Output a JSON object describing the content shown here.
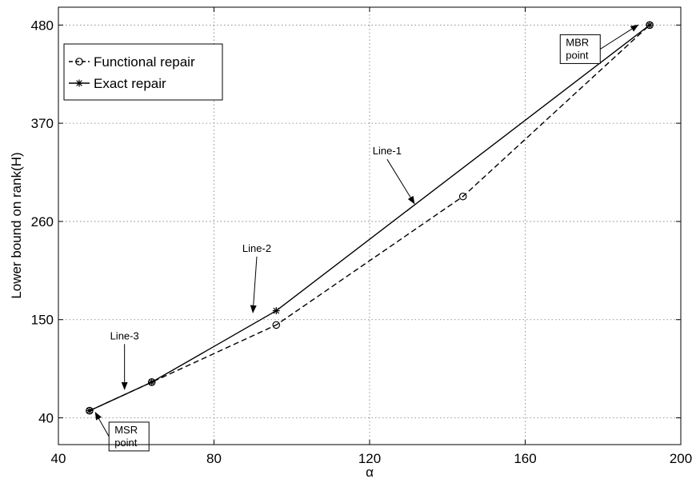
{
  "chart_data": {
    "type": "line",
    "title": "",
    "xlabel": "α",
    "ylabel": "Lower bound on rank(H)",
    "xlim": [
      40,
      200
    ],
    "ylim": [
      10,
      500
    ],
    "xticks": [
      40,
      80,
      120,
      160,
      200
    ],
    "yticks": [
      40,
      150,
      260,
      370,
      480
    ],
    "grid": true,
    "legend_position": "top-left",
    "series": [
      {
        "name": "Functional repair",
        "style": "dashed",
        "marker": "circle",
        "color": "#000000",
        "x": [
          48,
          64,
          96,
          144,
          192
        ],
        "y": [
          48,
          80,
          144,
          288,
          480
        ]
      },
      {
        "name": "Exact repair",
        "style": "solid",
        "marker": "star",
        "color": "#000000",
        "x": [
          48,
          64,
          96,
          192
        ],
        "y": [
          48,
          80,
          160,
          480
        ]
      }
    ],
    "annotations": [
      {
        "id": "line-1",
        "text": "Line-1",
        "text_x": 124.5,
        "text_y": 335,
        "arrow_x": 131.5,
        "arrow_y": 280
      },
      {
        "id": "line-2",
        "text": "Line-2",
        "text_x": 91,
        "text_y": 226,
        "arrow_x": 90,
        "arrow_y": 158
      },
      {
        "id": "line-3",
        "text": "Line-3",
        "text_x": 57,
        "text_y": 128,
        "arrow_x": 57,
        "arrow_y": 72
      }
    ],
    "boxed_labels": [
      {
        "id": "mbr",
        "lines": [
          "MBR",
          "point"
        ],
        "x": 169,
        "y": 462,
        "arrow_x": 189,
        "arrow_y": 480
      },
      {
        "id": "msr",
        "lines": [
          "MSR",
          "point"
        ],
        "x": 53,
        "y": 28,
        "arrow_x": 49.5,
        "arrow_y": 46
      }
    ]
  }
}
